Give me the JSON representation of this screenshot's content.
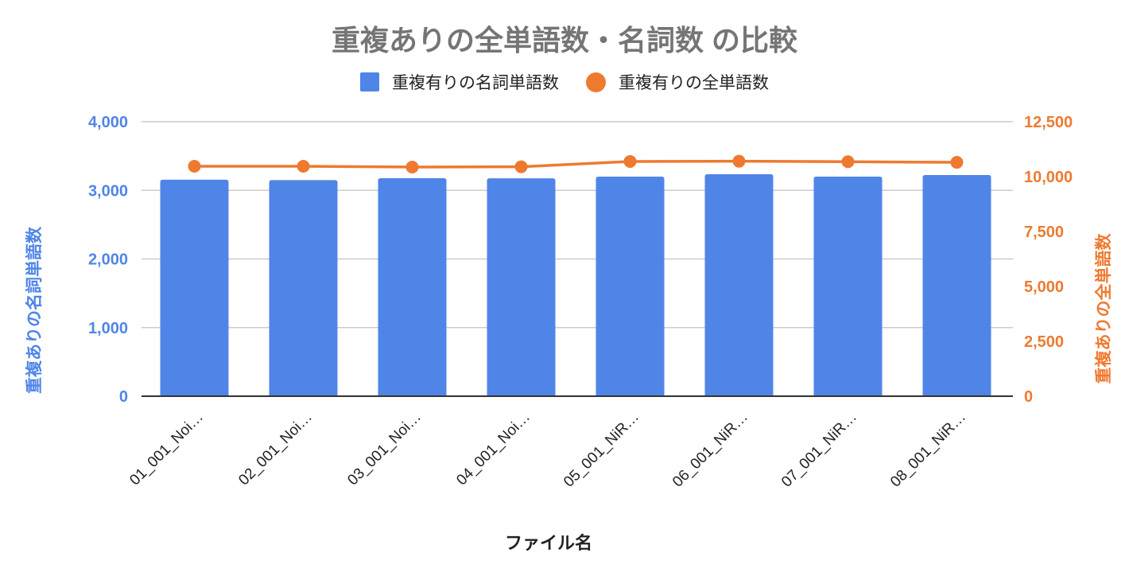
{
  "title": "重複ありの全単語数・名詞数 の比較",
  "legend": [
    {
      "label": "重複有りの名詞単語数",
      "shape": "square",
      "color": "#5085e8"
    },
    {
      "label": "重複有りの全単語数",
      "shape": "circle",
      "color": "#ee7a30"
    }
  ],
  "axes": {
    "x_title": "ファイル名",
    "y_left_title": "重複ありの名詞単語数",
    "y_right_title": "重複ありの全単語数",
    "y_left_ticks": [
      "0",
      "1,000",
      "2,000",
      "3,000",
      "4,000"
    ],
    "y_right_ticks": [
      "0",
      "2,500",
      "5,000",
      "7,500",
      "10,000",
      "12,500"
    ]
  },
  "chart_data": {
    "type": "bar+line",
    "title": "重複ありの全単語数・名詞数 の比較",
    "xlabel": "ファイル名",
    "ylabel": "重複ありの名詞単語数",
    "y2label": "重複ありの全単語数",
    "categories": [
      "01_001_Noi…",
      "02_001_Noi…",
      "03_001_Noi…",
      "04_001_Noi…",
      "05_001_NiR…",
      "06_001_NiR…",
      "07_001_NiR…",
      "08_001_NiR…"
    ],
    "series": [
      {
        "name": "重複有りの名詞単語数",
        "type": "bar",
        "axis": "left",
        "color": "#5085e8",
        "values": [
          3155,
          3150,
          3177,
          3175,
          3200,
          3235,
          3200,
          3223
        ]
      },
      {
        "name": "重複有りの全単語数",
        "type": "line",
        "axis": "right",
        "color": "#ee7a30",
        "values": [
          10470,
          10470,
          10435,
          10450,
          10690,
          10700,
          10680,
          10650
        ]
      }
    ],
    "ylim": [
      0,
      4000
    ],
    "y2lim": [
      0,
      12500
    ],
    "grid": true,
    "legend_position": "top"
  }
}
